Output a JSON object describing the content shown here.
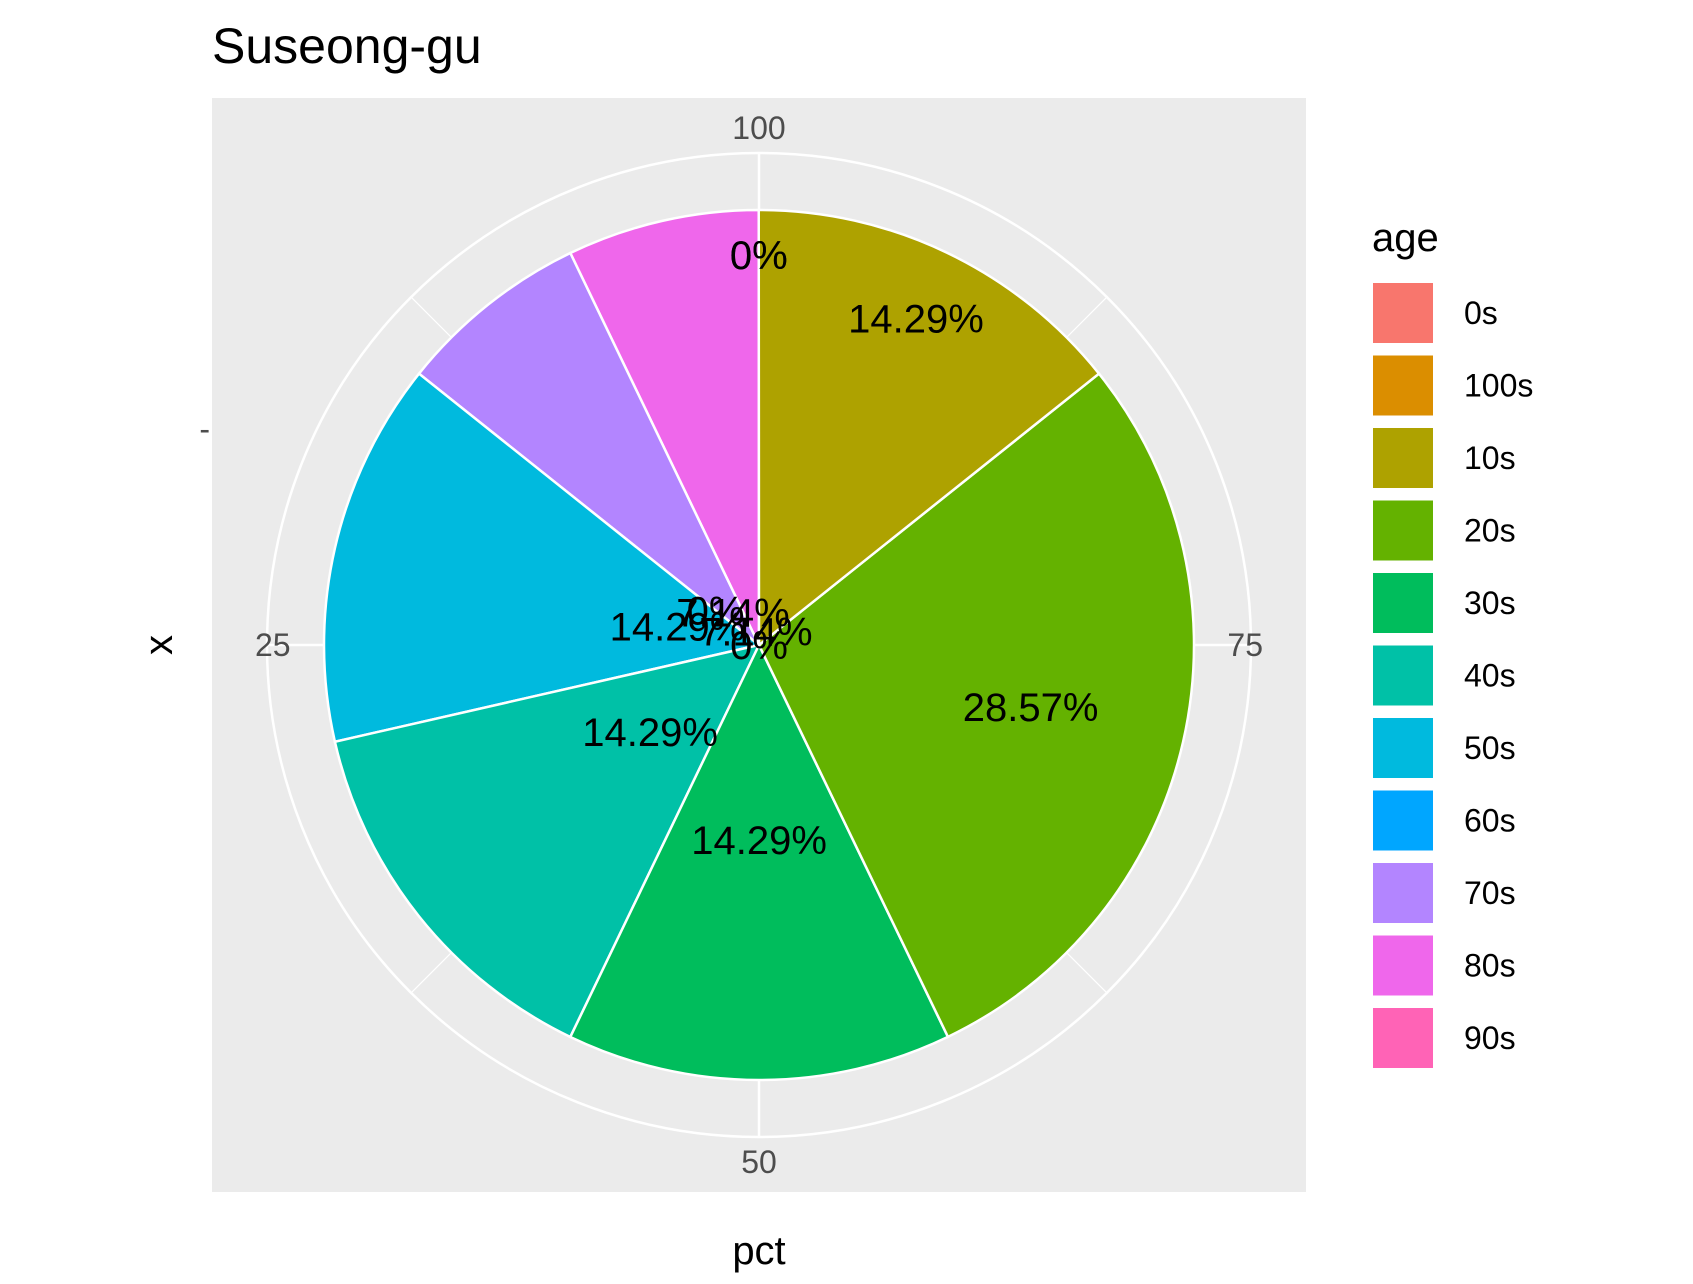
{
  "chart_data": {
    "type": "pie",
    "title": "Suseong-gu",
    "xlabel": "pct",
    "ylabel": "x",
    "y_tick_labels": [
      "-"
    ],
    "theta_range": [
      0,
      100
    ],
    "theta_ticks": [
      {
        "value": 100,
        "label": "100"
      },
      {
        "value": 25,
        "label": "25"
      },
      {
        "value": 50,
        "label": "50"
      },
      {
        "value": 75,
        "label": "75"
      }
    ],
    "grid": true,
    "legend": {
      "title": "age",
      "position": "right"
    },
    "categories": [
      "0s",
      "100s",
      "10s",
      "20s",
      "30s",
      "40s",
      "50s",
      "60s",
      "70s",
      "80s",
      "90s"
    ],
    "values": [
      0,
      0,
      14.29,
      28.57,
      14.29,
      14.29,
      14.29,
      0,
      7.14,
      7.14,
      0
    ],
    "labels": [
      "0%",
      "0%",
      "14.29%",
      "28.57%",
      "14.29%",
      "14.29%",
      "14.29%",
      "0%",
      "7.14%",
      "7.14%",
      "0%"
    ],
    "colors": [
      "#F8766D",
      "#DB8E00",
      "#AEA200",
      "#64B200",
      "#00BD5C",
      "#00C1A7",
      "#00BADE",
      "#00A6FF",
      "#B385FF",
      "#EF67EB",
      "#FF63B6"
    ],
    "panel_background": "#EBEBEB",
    "grid_color": "#FFFFFF"
  }
}
